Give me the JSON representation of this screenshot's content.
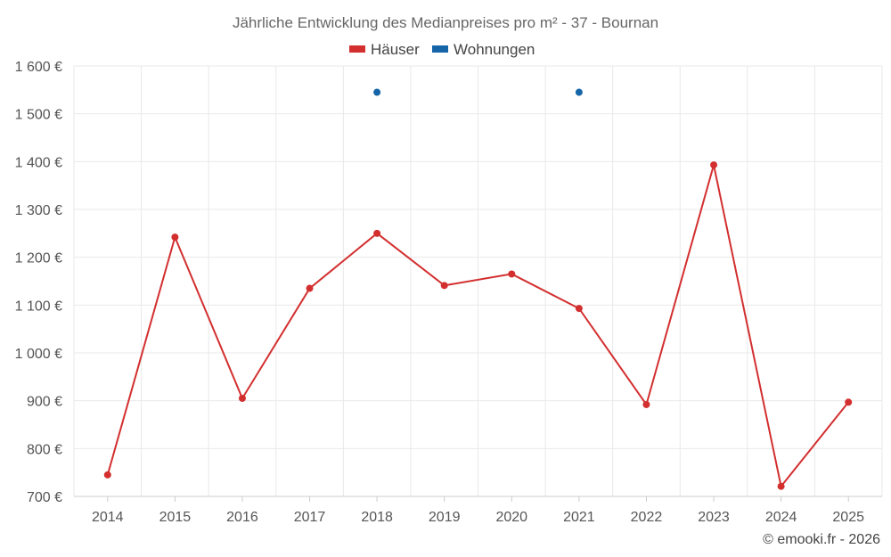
{
  "chart_data": {
    "type": "line",
    "title": "Jährliche Entwicklung des Medianpreises pro m² - 37 - Bournan",
    "categories": [
      "2014",
      "2015",
      "2016",
      "2017",
      "2018",
      "2019",
      "2020",
      "2021",
      "2022",
      "2023",
      "2024",
      "2025"
    ],
    "ylim": [
      700,
      1600
    ],
    "yticks": [
      700,
      800,
      900,
      1000,
      1100,
      1200,
      1300,
      1400,
      1500,
      1600
    ],
    "ytick_labels": [
      "700 €",
      "800 €",
      "900 €",
      "1 000 €",
      "1 100 €",
      "1 200 €",
      "1 300 €",
      "1 400 €",
      "1 500 €",
      "1 600 €"
    ],
    "series": [
      {
        "name": "Häuser",
        "color": "#d32f2f",
        "values": [
          745,
          1242,
          905,
          1135,
          1250,
          1141,
          1165,
          1093,
          892,
          1393,
          721,
          897
        ]
      },
      {
        "name": "Wohnungen",
        "color": "#1565a8",
        "values": [
          null,
          null,
          null,
          null,
          1545,
          null,
          null,
          1545,
          null,
          null,
          null,
          null
        ]
      }
    ],
    "xlabel": "",
    "ylabel": "",
    "grid": true,
    "legend_position": "top-center"
  },
  "credit": "© emooki.fr - 2026"
}
